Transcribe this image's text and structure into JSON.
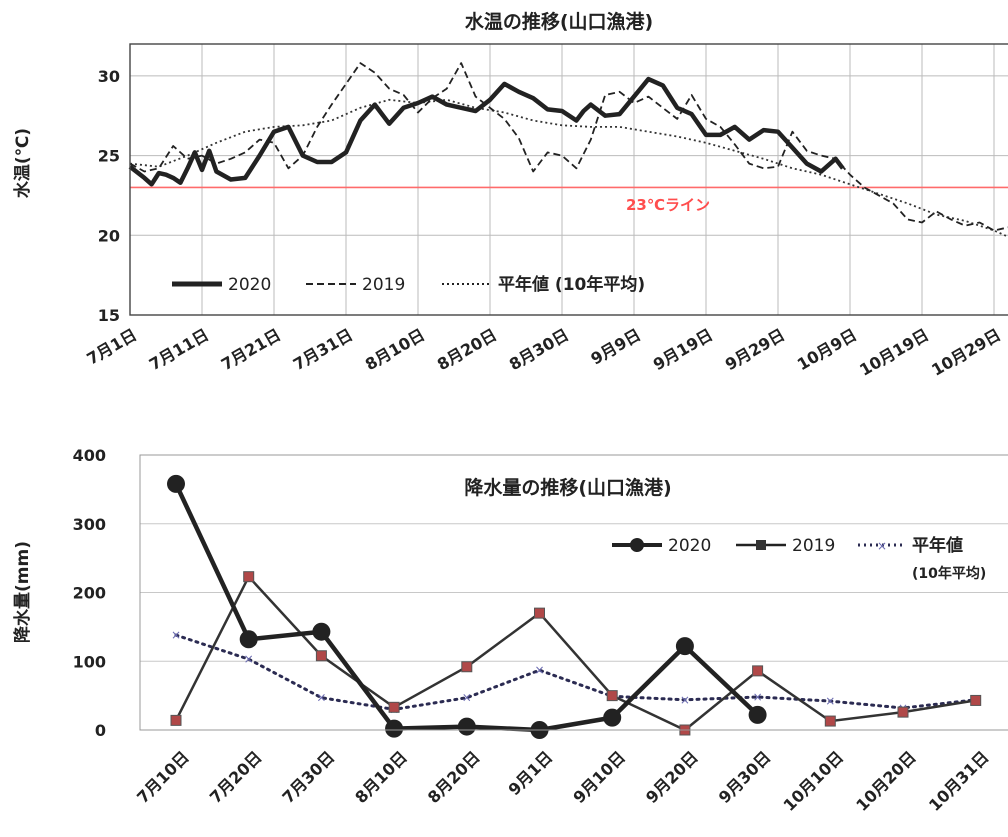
{
  "chart_data": [
    {
      "type": "line",
      "title": "水温の推移(山口漁港)",
      "ylabel": "水温(℃)",
      "ylim": [
        15,
        32
      ],
      "yticks": [
        "15",
        "20",
        "25",
        "30"
      ],
      "x_labels": [
        "7月1日",
        "7月11日",
        "7月21日",
        "7月31日",
        "8月10日",
        "8月20日",
        "8月30日",
        "9月9日",
        "9月19日",
        "9月29日",
        "10月9日",
        "10月19日",
        "10月29日"
      ],
      "reference_line": {
        "value": 23,
        "label": "23℃ライン",
        "color": "#ff6b6b"
      },
      "legend": [
        "2020",
        "2019",
        "平年値 (10年平均)"
      ],
      "series": [
        {
          "name": "2020",
          "style": "solid-bold",
          "x_days": [
            0,
            2,
            3,
            4,
            5,
            6,
            7,
            8,
            9,
            10,
            11,
            12,
            14,
            16,
            18,
            20,
            22,
            24,
            26,
            28,
            30,
            32,
            34,
            36,
            38,
            40,
            42,
            44,
            46,
            48,
            50,
            52,
            54,
            56,
            58,
            60,
            62,
            63,
            64,
            66,
            68,
            70,
            72,
            74,
            76,
            78,
            80,
            82,
            84,
            86,
            88,
            90,
            92,
            94,
            96,
            98,
            99
          ],
          "values": [
            24.3,
            23.6,
            23.2,
            23.9,
            23.8,
            23.6,
            23.3,
            24.2,
            25.2,
            24.1,
            25.3,
            24.0,
            23.5,
            23.6,
            25.0,
            26.5,
            26.8,
            25.0,
            24.6,
            24.6,
            25.2,
            27.2,
            28.2,
            27.0,
            28.0,
            28.3,
            28.7,
            28.2,
            28.0,
            27.8,
            28.5,
            29.5,
            29.0,
            28.6,
            27.9,
            27.8,
            27.2,
            27.8,
            28.2,
            27.5,
            27.6,
            28.7,
            29.8,
            29.4,
            28.0,
            27.6,
            26.3,
            26.3,
            26.8,
            26.0,
            26.6,
            26.5,
            25.5,
            24.5,
            24.0,
            24.8,
            24.2
          ]
        },
        {
          "name": "2019",
          "style": "dashed",
          "x_days": [
            0,
            2,
            4,
            6,
            8,
            10,
            12,
            14,
            16,
            18,
            20,
            22,
            24,
            26,
            28,
            30,
            32,
            34,
            36,
            38,
            40,
            42,
            44,
            46,
            48,
            50,
            52,
            54,
            56,
            58,
            60,
            62,
            64,
            66,
            68,
            70,
            72,
            74,
            76,
            78,
            80,
            82,
            84,
            86,
            88,
            90,
            92,
            94,
            96,
            98,
            100,
            102,
            104,
            106,
            108,
            110,
            112,
            114,
            116,
            118,
            120,
            122
          ],
          "values": [
            24.5,
            24.0,
            24.2,
            25.6,
            24.8,
            25.0,
            24.5,
            24.8,
            25.2,
            26.0,
            25.8,
            24.2,
            25.0,
            26.8,
            28.2,
            29.5,
            30.8,
            30.2,
            29.2,
            28.8,
            27.7,
            28.6,
            29.2,
            30.8,
            28.7,
            28.0,
            27.3,
            26.1,
            24.0,
            25.2,
            25.0,
            24.2,
            26.0,
            28.8,
            29.0,
            28.3,
            28.7,
            28.0,
            27.3,
            28.8,
            27.3,
            26.8,
            25.7,
            24.5,
            24.2,
            24.3,
            26.5,
            25.3,
            25.0,
            24.8,
            23.8,
            23.0,
            22.5,
            22.0,
            21.0,
            20.8,
            21.5,
            21.0,
            20.6,
            20.8,
            20.3,
            20.5
          ]
        },
        {
          "name": "平年値 (10年平均)",
          "style": "dotted",
          "x_days": [
            0,
            4,
            8,
            12,
            16,
            20,
            24,
            28,
            32,
            36,
            40,
            44,
            48,
            52,
            56,
            60,
            64,
            68,
            72,
            76,
            80,
            84,
            88,
            92,
            96,
            100,
            104,
            108,
            112,
            116,
            120,
            124
          ],
          "values": [
            24.5,
            24.3,
            25.0,
            25.8,
            26.5,
            26.8,
            26.9,
            27.2,
            28.0,
            28.5,
            28.3,
            28.5,
            28.0,
            27.7,
            27.2,
            26.9,
            26.8,
            26.8,
            26.5,
            26.2,
            25.8,
            25.3,
            24.8,
            24.2,
            23.8,
            23.2,
            22.6,
            22.0,
            21.3,
            20.9,
            20.3,
            19.5
          ]
        }
      ]
    },
    {
      "type": "line",
      "title": "降水量の推移(山口漁港)",
      "ylabel": "降水量(mm)",
      "ylim": [
        0,
        400
      ],
      "yticks": [
        "0",
        "100",
        "200",
        "300",
        "400"
      ],
      "categories": [
        "7月10日",
        "7月20日",
        "7月30日",
        "8月10日",
        "8月20日",
        "9月1日",
        "9月10日",
        "9月20日",
        "9月30日",
        "10月10日",
        "10月20日",
        "10月31日"
      ],
      "legend_note": "(10年平均)",
      "series": [
        {
          "name": "2020",
          "values": [
            358,
            132,
            143,
            2,
            5,
            0,
            18,
            122,
            22,
            null,
            null,
            null
          ]
        },
        {
          "name": "2019",
          "values": [
            14,
            223,
            108,
            33,
            92,
            170,
            50,
            0,
            86,
            13,
            26,
            43
          ]
        },
        {
          "name": "平年値",
          "values": [
            138,
            103,
            47,
            30,
            47,
            87,
            49,
            44,
            48,
            42,
            32,
            44
          ]
        }
      ]
    }
  ]
}
